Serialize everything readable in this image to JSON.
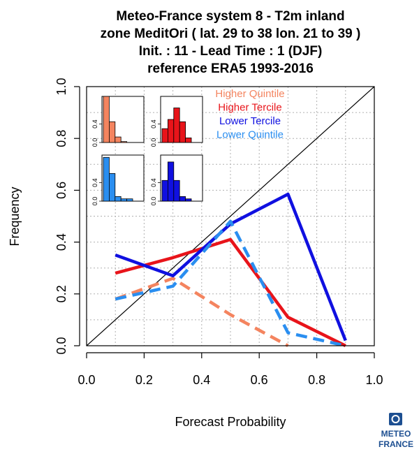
{
  "colors": {
    "higher_quintile": "#f4845f",
    "higher_tercile": "#e8141a",
    "lower_tercile": "#1010e0",
    "lower_quintile": "#2a8ef0",
    "grid": "#b0b0b0",
    "logo": "#1d4f91"
  },
  "logo": {
    "line1": "METEO",
    "line2": "FRANCE"
  },
  "chart_data": {
    "type": "line",
    "title": [
      "Meteo-France system 8  -  T2m inland",
      "zone MeditOri ( lat. 29 to 38    lon. 21 to 39 )",
      "Init. : 11  - Lead Time : 1 (DJF)",
      "reference ERA5 1993-2016"
    ],
    "xlabel": "Forecast Probability",
    "ylabel": "Frequency",
    "xlim": [
      0,
      1
    ],
    "ylim": [
      0,
      1
    ],
    "xticks": [
      "0.0",
      "0.2",
      "0.4",
      "0.6",
      "0.8",
      "1.0"
    ],
    "yticks": [
      "0.0",
      "0.2",
      "0.4",
      "0.6",
      "0.8",
      "1.0"
    ],
    "grid": true,
    "diagonal": true,
    "legend_position": "top-right",
    "series": [
      {
        "name": "Higher Quintile",
        "color_key": "higher_quintile",
        "dashed": true,
        "x": [
          0.1,
          0.3,
          0.5,
          0.7
        ],
        "y": [
          0.18,
          0.26,
          0.12,
          0.0
        ]
      },
      {
        "name": "Higher Tercile",
        "color_key": "higher_tercile",
        "dashed": false,
        "x": [
          0.1,
          0.3,
          0.5,
          0.7,
          0.9
        ],
        "y": [
          0.28,
          0.34,
          0.41,
          0.11,
          0.0
        ]
      },
      {
        "name": "Lower Tercile",
        "color_key": "lower_tercile",
        "dashed": false,
        "x": [
          0.1,
          0.3,
          0.5,
          0.7,
          0.9
        ],
        "y": [
          0.35,
          0.27,
          0.47,
          0.585,
          0.02
        ]
      },
      {
        "name": "Lower Quintile",
        "color_key": "lower_quintile",
        "dashed": true,
        "x": [
          0.1,
          0.3,
          0.5,
          0.7,
          0.9
        ],
        "y": [
          0.18,
          0.23,
          0.48,
          0.05,
          0.0
        ]
      }
    ],
    "histograms": [
      {
        "series": "Higher Quintile",
        "color_key": "higher_quintile",
        "values": [
          1.0,
          0.45,
          0.12,
          0.02,
          0.0
        ],
        "yticks": [
          "0.0",
          "0.4"
        ]
      },
      {
        "series": "Higher Tercile",
        "color_key": "higher_tercile",
        "values": [
          0.3,
          0.5,
          0.75,
          0.45,
          0.1
        ],
        "yticks": [
          "0.0",
          "0.4"
        ]
      },
      {
        "series": "Lower Quintile",
        "color_key": "lower_quintile",
        "values": [
          0.95,
          0.6,
          0.1,
          0.05,
          0.05
        ],
        "yticks": [
          "0.0",
          "0.4"
        ]
      },
      {
        "series": "Lower Tercile",
        "color_key": "lower_tercile",
        "values": [
          0.45,
          0.85,
          0.45,
          0.1,
          0.05
        ],
        "yticks": [
          "0.0",
          "0.4"
        ]
      }
    ]
  }
}
